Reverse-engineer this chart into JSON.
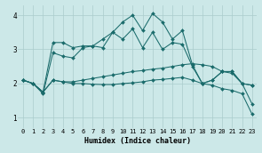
{
  "xlabel": "Humidex (Indice chaleur)",
  "bg_color": "#cce8e8",
  "grid_color": "#aacccc",
  "line_color": "#1a6b6b",
  "xlim": [
    -0.5,
    23.5
  ],
  "ylim": [
    0.7,
    4.3
  ],
  "xticks": [
    0,
    1,
    2,
    3,
    4,
    5,
    6,
    7,
    8,
    9,
    10,
    11,
    12,
    13,
    14,
    15,
    16,
    17,
    18,
    19,
    20,
    21,
    22,
    23
  ],
  "yticks": [
    1,
    2,
    3,
    4
  ],
  "line1_x": [
    0,
    1,
    2,
    3,
    4,
    5,
    6,
    7,
    8,
    9,
    10,
    11,
    12,
    13,
    14,
    15,
    16,
    17,
    18,
    19,
    20,
    21,
    22,
    23
  ],
  "line1_y": [
    2.1,
    2.0,
    1.75,
    3.2,
    3.2,
    3.05,
    3.1,
    3.1,
    3.05,
    3.5,
    3.3,
    3.6,
    3.05,
    3.5,
    3.0,
    3.2,
    3.15,
    2.5,
    2.0,
    2.1,
    2.35,
    2.35,
    2.0,
    1.95
  ],
  "line2_x": [
    0,
    1,
    2,
    3,
    4,
    5,
    6,
    7,
    8,
    9,
    10,
    11,
    12,
    13,
    14,
    15,
    16,
    17,
    18,
    19,
    20,
    21,
    22,
    23
  ],
  "line2_y": [
    2.1,
    2.0,
    1.7,
    2.9,
    2.8,
    2.75,
    3.05,
    3.1,
    3.3,
    3.5,
    3.8,
    4.0,
    3.55,
    4.05,
    3.8,
    3.3,
    3.55,
    2.55,
    2.0,
    2.1,
    2.35,
    2.35,
    2.0,
    1.95
  ],
  "line3_x": [
    0,
    1,
    2,
    3,
    4,
    5,
    6,
    7,
    8,
    9,
    10,
    11,
    12,
    13,
    14,
    15,
    16,
    17,
    18,
    19,
    20,
    21,
    22,
    23
  ],
  "line3_y": [
    2.1,
    2.0,
    1.75,
    2.1,
    2.05,
    2.05,
    2.1,
    2.15,
    2.2,
    2.25,
    2.3,
    2.35,
    2.38,
    2.42,
    2.45,
    2.5,
    2.55,
    2.58,
    2.55,
    2.5,
    2.35,
    2.3,
    2.0,
    1.4
  ],
  "line4_x": [
    0,
    1,
    2,
    3,
    4,
    5,
    6,
    7,
    8,
    9,
    10,
    11,
    12,
    13,
    14,
    15,
    16,
    17,
    18,
    19,
    20,
    21,
    22,
    23
  ],
  "line4_y": [
    2.1,
    2.0,
    1.75,
    2.1,
    2.05,
    2.0,
    2.0,
    1.98,
    1.97,
    1.97,
    2.0,
    2.02,
    2.05,
    2.1,
    2.12,
    2.15,
    2.18,
    2.1,
    2.0,
    1.95,
    1.85,
    1.8,
    1.7,
    1.1
  ]
}
